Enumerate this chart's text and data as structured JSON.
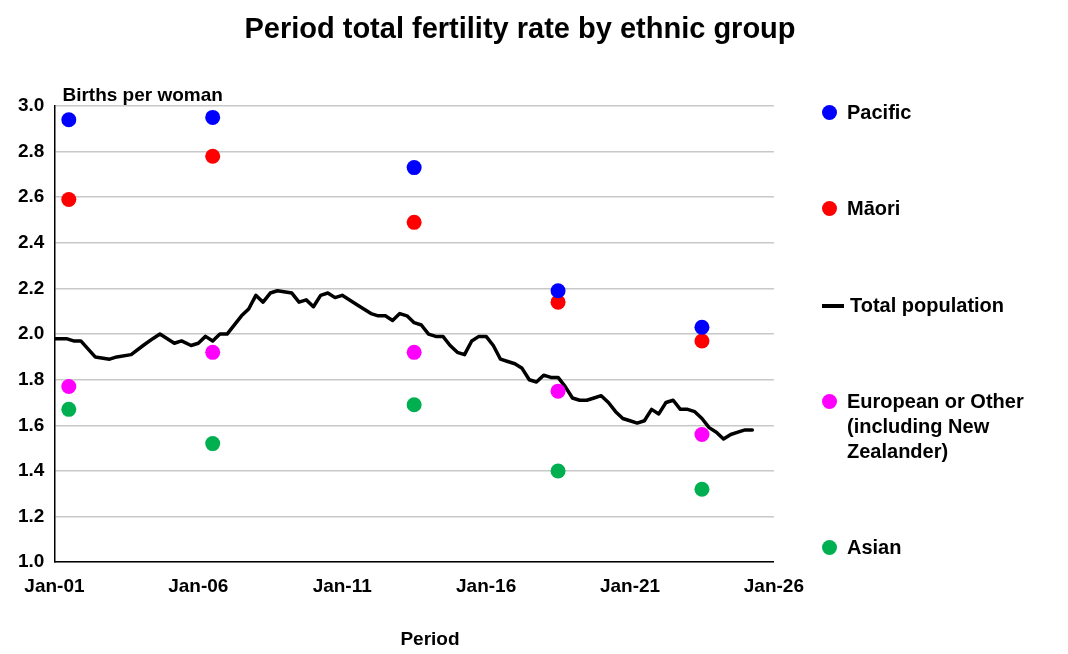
{
  "chart_data": {
    "type": "line",
    "title": "Period total fertility rate by ethnic group",
    "xlabel": "Period",
    "ylabel": "Births per woman",
    "xlim": [
      "2001-01",
      "2026-01"
    ],
    "xticks": [
      {
        "value": "2001-01",
        "label": "Jan-01"
      },
      {
        "value": "2006-01",
        "label": "Jan-06"
      },
      {
        "value": "2011-01",
        "label": "Jan-11"
      },
      {
        "value": "2016-01",
        "label": "Jan-16"
      },
      {
        "value": "2021-01",
        "label": "Jan-21"
      },
      {
        "value": "2026-01",
        "label": "Jan-26"
      }
    ],
    "ylim": [
      1.0,
      3.0
    ],
    "yticks": [
      {
        "value": 1.0,
        "label": "1.0"
      },
      {
        "value": 1.2,
        "label": "1.2"
      },
      {
        "value": 1.4,
        "label": "1.4"
      },
      {
        "value": 1.6,
        "label": "1.6"
      },
      {
        "value": 1.8,
        "label": "1.8"
      },
      {
        "value": 2.0,
        "label": "2.0"
      },
      {
        "value": 2.2,
        "label": "2.2"
      },
      {
        "value": 2.4,
        "label": "2.4"
      },
      {
        "value": 2.6,
        "label": "2.6"
      },
      {
        "value": 2.8,
        "label": "2.8"
      },
      {
        "value": 3.0,
        "label": "3.0"
      }
    ],
    "grid": "y",
    "legend": "right",
    "series": [
      {
        "name": "Pacific",
        "type": "scatter",
        "marker": "circle",
        "color": "#0000ff",
        "x": [
          "2001-07",
          "2006-07",
          "2013-07",
          "2018-07",
          "2023-07"
        ],
        "values": [
          2.94,
          2.95,
          2.73,
          2.19,
          2.03
        ]
      },
      {
        "name": "Māori",
        "type": "scatter",
        "marker": "circle",
        "color": "#ff0000",
        "x": [
          "2001-07",
          "2006-07",
          "2013-07",
          "2018-07",
          "2023-07"
        ],
        "values": [
          2.59,
          2.78,
          2.49,
          2.14,
          1.97
        ]
      },
      {
        "name": "Total population",
        "type": "line",
        "marker": "none",
        "line_style": "solid",
        "color": "#000000",
        "x": [
          "2001-01",
          "2001-06",
          "2001-09",
          "2001-12",
          "2002-06",
          "2002-12",
          "2003-03",
          "2003-09",
          "2004-02",
          "2004-06",
          "2004-09",
          "2005-03",
          "2005-06",
          "2005-10",
          "2006-01",
          "2006-04",
          "2006-07",
          "2006-10",
          "2007-01",
          "2007-07",
          "2007-10",
          "2008-01",
          "2008-04",
          "2008-07",
          "2008-10",
          "2009-04",
          "2009-07",
          "2009-10",
          "2010-01",
          "2010-04",
          "2010-07",
          "2010-10",
          "2011-01",
          "2011-07",
          "2011-10",
          "2012-01",
          "2012-04",
          "2012-07",
          "2012-10",
          "2013-01",
          "2013-04",
          "2013-07",
          "2013-10",
          "2014-01",
          "2014-04",
          "2014-07",
          "2014-10",
          "2015-01",
          "2015-04",
          "2015-07",
          "2015-10",
          "2016-01",
          "2016-04",
          "2016-07",
          "2016-10",
          "2017-01",
          "2017-04",
          "2017-07",
          "2017-10",
          "2018-01",
          "2018-04",
          "2018-07",
          "2018-10",
          "2019-01",
          "2019-04",
          "2019-07",
          "2019-10",
          "2020-01",
          "2020-04",
          "2020-07",
          "2020-10",
          "2021-01",
          "2021-04",
          "2021-07",
          "2021-10",
          "2022-01",
          "2022-04",
          "2022-07",
          "2022-10",
          "2023-01",
          "2023-04",
          "2023-07",
          "2023-10",
          "2024-01",
          "2024-04",
          "2024-07",
          "2024-10",
          "2025-01",
          "2025-04"
        ],
        "values": [
          1.98,
          1.98,
          1.97,
          1.97,
          1.9,
          1.89,
          1.9,
          1.91,
          1.95,
          1.98,
          2.0,
          1.96,
          1.97,
          1.95,
          1.96,
          1.99,
          1.97,
          2.0,
          2.0,
          2.08,
          2.11,
          2.17,
          2.14,
          2.18,
          2.19,
          2.18,
          2.14,
          2.15,
          2.12,
          2.17,
          2.18,
          2.16,
          2.17,
          2.13,
          2.11,
          2.09,
          2.08,
          2.08,
          2.06,
          2.09,
          2.08,
          2.05,
          2.04,
          2.0,
          1.99,
          1.99,
          1.95,
          1.92,
          1.91,
          1.97,
          1.99,
          1.99,
          1.95,
          1.89,
          1.88,
          1.87,
          1.85,
          1.8,
          1.79,
          1.82,
          1.81,
          1.81,
          1.77,
          1.72,
          1.71,
          1.71,
          1.72,
          1.73,
          1.7,
          1.66,
          1.63,
          1.62,
          1.61,
          1.62,
          1.67,
          1.65,
          1.7,
          1.71,
          1.67,
          1.67,
          1.66,
          1.63,
          1.59,
          1.57,
          1.54,
          1.56,
          1.57,
          1.58,
          1.58
        ]
      },
      {
        "name": "European or Other (including New Zealander)",
        "type": "scatter",
        "marker": "circle",
        "color": "#ff00ff",
        "x": [
          "2001-07",
          "2006-07",
          "2013-07",
          "2018-07",
          "2023-07"
        ],
        "values": [
          1.77,
          1.92,
          1.92,
          1.75,
          1.56
        ]
      },
      {
        "name": "Asian",
        "type": "scatter",
        "marker": "circle",
        "color": "#00b050",
        "x": [
          "2001-07",
          "2006-07",
          "2013-07",
          "2018-07",
          "2023-07"
        ],
        "values": [
          1.67,
          1.52,
          1.69,
          1.4,
          1.32
        ]
      }
    ]
  }
}
